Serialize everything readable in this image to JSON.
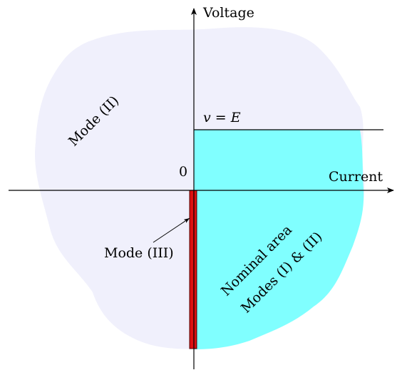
{
  "axes": {
    "x_label": "Current",
    "y_label": "Voltage",
    "origin_label": "0"
  },
  "level_label": "v = E",
  "regions": {
    "mode_ii_label": "Mode (II)",
    "mode_iii_label": "Mode (III)",
    "nominal_line1": "Nominal area",
    "nominal_line2": "Modes (I) & (II)"
  },
  "colors": {
    "outer_region": "#f0f0fc",
    "nominal_region": "#80ffff",
    "mode_iii_bar": "#dd1111",
    "lines": "#000000"
  }
}
